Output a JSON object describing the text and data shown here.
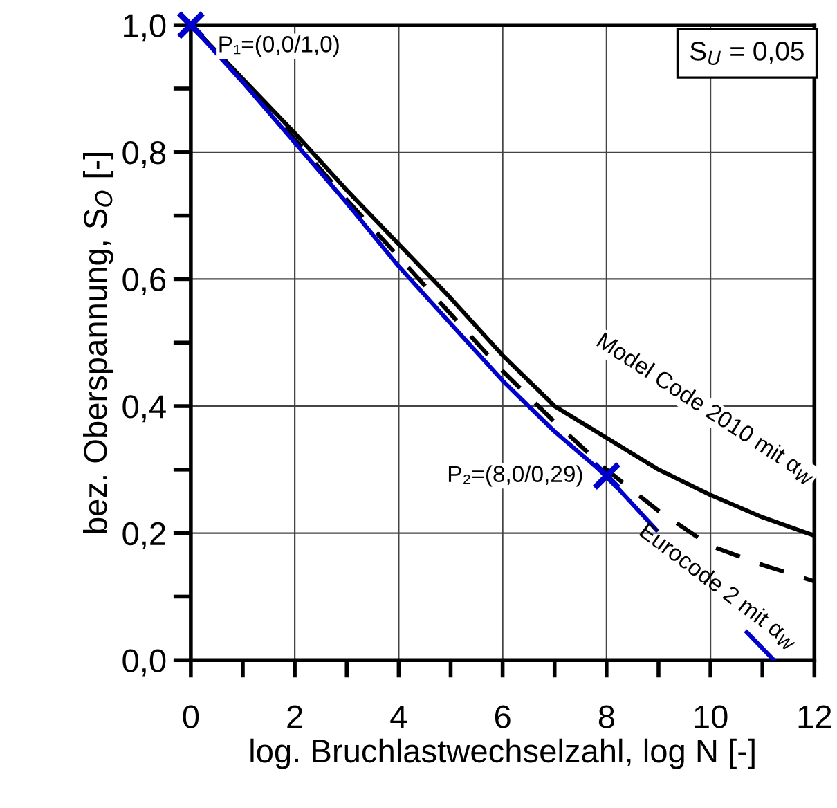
{
  "chart_data": {
    "type": "line",
    "xlabel": "log. Bruchlastwechselzahl, log N [-]",
    "ylabel": "bez. Oberspannung, S$_{O}$ [-]",
    "series": [
      {
        "name": "Model Code 2010 mit α$_{W}$",
        "color": "#000000",
        "line_style": "solid",
        "x": [
          0,
          1,
          2,
          3,
          4,
          5,
          6,
          7,
          8,
          9,
          10,
          11,
          12
        ],
        "values": [
          1.0,
          0.915,
          0.83,
          0.74,
          0.655,
          0.57,
          0.48,
          0.4,
          0.35,
          0.3,
          0.26,
          0.225,
          0.196
        ]
      },
      {
        "color": "#000000",
        "line_style": "dashed",
        "x": [
          0,
          1,
          2,
          3,
          4,
          5,
          6,
          7,
          8,
          9,
          10,
          11,
          12
        ],
        "values": [
          1.0,
          0.915,
          0.82,
          0.725,
          0.635,
          0.545,
          0.455,
          0.375,
          0.3,
          0.235,
          0.18,
          0.15,
          0.124
        ]
      },
      {
        "name": "Eurocode 2 mit α$_{W}$",
        "color": "#0000cc",
        "line_style": "solid",
        "x": [
          0,
          1,
          2,
          3,
          4,
          5,
          6,
          7,
          8,
          8.96,
          9.8,
          10.7,
          11.22
        ],
        "values": [
          1.0,
          0.91,
          0.815,
          0.72,
          0.62,
          0.53,
          0.44,
          0.36,
          0.29,
          0.205,
          null,
          0.044,
          0.0
        ]
      },
      {
        "type": "scatter",
        "color": "#0000cc",
        "marker": "cross",
        "x": [
          0,
          8
        ],
        "values": [
          1.0,
          0.29
        ]
      }
    ],
    "annotations": [
      {
        "text": "P₁=(0,0/1,0)",
        "x": 0,
        "y": 1.0
      },
      {
        "text": "P₂=(8,0/0,29)",
        "x": 8,
        "y": 0.29
      },
      "S$_{U}$ = 0,05"
    ],
    "xlim": [
      0,
      12
    ],
    "ylim": [
      0,
      1.0
    ],
    "xticks": [
      0,
      {
        "value": 1,
        "label": null
      },
      2,
      {
        "value": 3,
        "label": null
      },
      4,
      {
        "value": 5,
        "label": null
      },
      6,
      {
        "value": 7,
        "label": null
      },
      8,
      {
        "value": 9,
        "label": null
      },
      10,
      {
        "value": 11,
        "label": null
      },
      12
    ],
    "yticks": [
      {
        "value": 0,
        "label": "0,0"
      },
      {
        "value": 0.1,
        "label": null
      },
      {
        "value": 0.2,
        "label": "0,2"
      },
      {
        "value": 0.3,
        "label": null
      },
      {
        "value": 0.4,
        "label": "0,4"
      },
      {
        "value": 0.5,
        "label": null
      },
      {
        "value": 0.6,
        "label": "0,6"
      },
      {
        "value": 0.7,
        "label": null
      },
      {
        "value": 0.8,
        "label": "0,8"
      },
      {
        "value": 0.9,
        "label": null
      },
      {
        "value": 1.0,
        "label": "1,0"
      }
    ],
    "grid": true,
    "legend": false
  }
}
